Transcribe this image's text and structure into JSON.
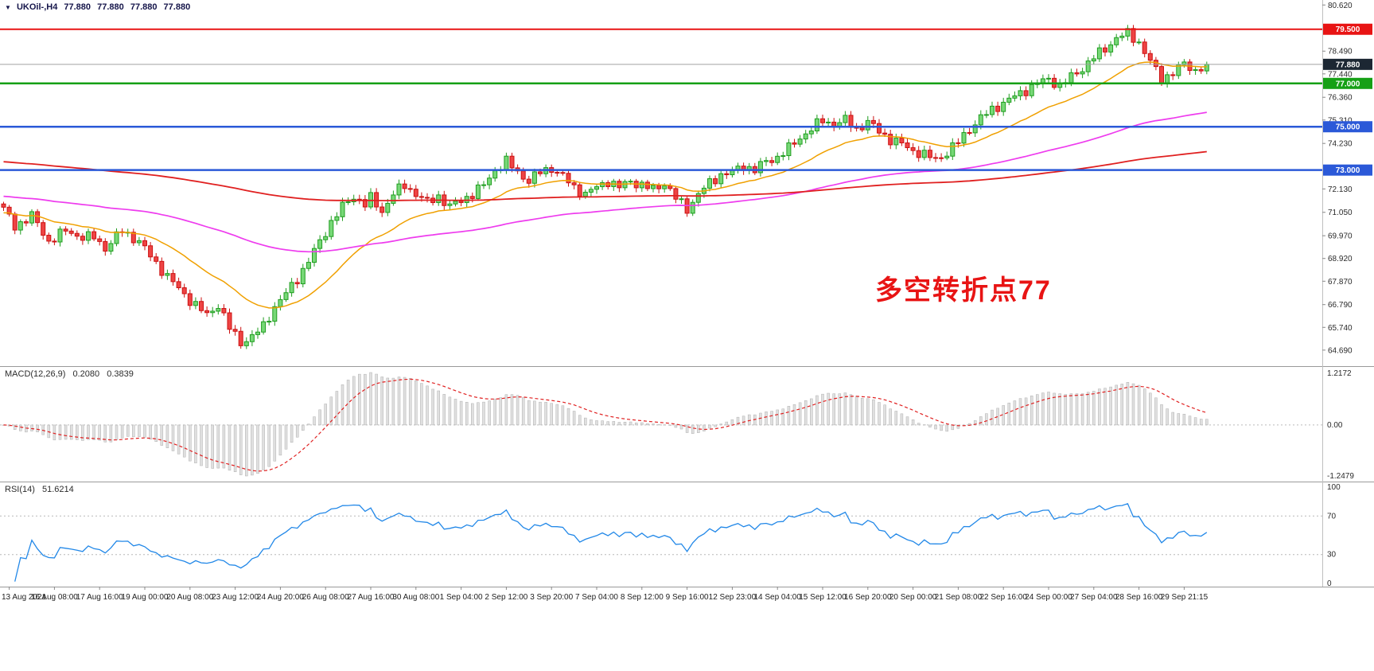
{
  "header": {
    "dropdown_icon": "▼",
    "symbol_timeframe": "UKOil-,H4",
    "open": "77.880",
    "high": "77.880",
    "low": "77.880",
    "close": "77.880"
  },
  "indicators": {
    "macd": {
      "label": "MACD(12,26,9)",
      "main": "0.2080",
      "signal": "0.3839"
    },
    "rsi": {
      "label": "RSI(14)",
      "value": "51.6214"
    }
  },
  "annotation": {
    "text": "多空转折点77",
    "color": "#e81414"
  },
  "chart_data": {
    "type": "candlestick",
    "symbol": "UKOil-",
    "timeframe": "H4",
    "bar_spacing_px": 7.1,
    "first_bar_x": 4.5,
    "price_range": [
      63.95,
      80.85
    ],
    "price_ticks": [
      {
        "v": 80.62,
        "t": "80.620"
      },
      {
        "v": 78.49,
        "t": "78.490"
      },
      {
        "v": 77.44,
        "t": "77.440"
      },
      {
        "v": 76.36,
        "t": "76.360"
      },
      {
        "v": 75.31,
        "t": "75.310"
      },
      {
        "v": 74.23,
        "t": "74.230"
      },
      {
        "v": 72.13,
        "t": "72.130"
      },
      {
        "v": 71.05,
        "t": "71.050"
      },
      {
        "v": 69.97,
        "t": "69.970"
      },
      {
        "v": 68.92,
        "t": "68.920"
      },
      {
        "v": 67.87,
        "t": "67.870"
      },
      {
        "v": 66.79,
        "t": "66.790"
      },
      {
        "v": 65.74,
        "t": "65.740"
      },
      {
        "v": 64.69,
        "t": "64.690"
      }
    ],
    "horizontal_levels": [
      {
        "value": 79.5,
        "label": "79.500",
        "color": "#e81414",
        "width": 2
      },
      {
        "value": 77.0,
        "label": "77.000",
        "color": "#16a016",
        "width": 2.5
      },
      {
        "value": 75.0,
        "label": "75.000",
        "color": "#2b59d8",
        "width": 2.5
      },
      {
        "value": 73.0,
        "label": "73.000",
        "color": "#2b59d8",
        "width": 2.5
      }
    ],
    "current_price": {
      "value": 77.88,
      "label": "77.880",
      "line_color": "#a0a0a0",
      "badge_color": "#1c2733"
    },
    "candle_colors": {
      "up_fill": "#77d877",
      "up_stroke": "#1f9d1f",
      "down_fill": "#ee4444",
      "down_stroke": "#cc1111"
    },
    "close_anchors": [
      [
        0,
        71.2
      ],
      [
        2,
        70.4
      ],
      [
        5,
        70.9
      ],
      [
        8,
        69.7
      ],
      [
        11,
        70.2
      ],
      [
        14,
        69.9
      ],
      [
        16,
        69.9
      ],
      [
        18,
        69.4
      ],
      [
        21,
        70.2
      ],
      [
        24,
        69.7
      ],
      [
        27,
        68.7
      ],
      [
        30,
        67.8
      ],
      [
        33,
        67.0
      ],
      [
        36,
        66.3
      ],
      [
        38,
        66.8
      ],
      [
        40,
        65.7
      ],
      [
        42,
        65.05
      ],
      [
        44,
        65.3
      ],
      [
        46,
        65.8
      ],
      [
        48,
        66.7
      ],
      [
        50,
        67.3
      ],
      [
        52,
        68.0
      ],
      [
        54,
        68.8
      ],
      [
        56,
        69.7
      ],
      [
        58,
        70.6
      ],
      [
        60,
        71.3
      ],
      [
        62,
        71.8
      ],
      [
        64,
        71.4
      ],
      [
        65,
        71.7
      ],
      [
        67,
        71.1
      ],
      [
        69,
        71.9
      ],
      [
        71,
        72.3
      ],
      [
        73,
        71.9
      ],
      [
        75,
        71.5
      ],
      [
        77,
        71.8
      ],
      [
        79,
        71.3
      ],
      [
        81,
        71.6
      ],
      [
        83,
        71.9
      ],
      [
        85,
        72.3
      ],
      [
        87,
        73.0
      ],
      [
        89,
        73.4
      ],
      [
        91,
        72.9
      ],
      [
        93,
        72.5
      ],
      [
        95,
        72.9
      ],
      [
        97,
        73.1
      ],
      [
        99,
        72.7
      ],
      [
        101,
        72.2
      ],
      [
        103,
        71.9
      ],
      [
        105,
        72.2
      ],
      [
        107,
        72.5
      ],
      [
        109,
        72.2
      ],
      [
        111,
        72.5
      ],
      [
        113,
        72.3
      ],
      [
        115,
        72.1
      ],
      [
        117,
        72.4
      ],
      [
        119,
        71.7
      ],
      [
        121,
        71.2
      ],
      [
        123,
        71.9
      ],
      [
        125,
        72.4
      ],
      [
        127,
        72.8
      ],
      [
        129,
        72.9
      ],
      [
        131,
        73.2
      ],
      [
        133,
        73.0
      ],
      [
        135,
        73.4
      ],
      [
        137,
        73.6
      ],
      [
        139,
        74.0
      ],
      [
        141,
        74.5
      ],
      [
        143,
        74.9
      ],
      [
        145,
        75.3
      ],
      [
        147,
        75.1
      ],
      [
        149,
        75.3
      ],
      [
        151,
        74.9
      ],
      [
        153,
        75.2
      ],
      [
        155,
        74.8
      ],
      [
        157,
        74.4
      ],
      [
        159,
        74.2
      ],
      [
        161,
        73.9
      ],
      [
        163,
        73.7
      ],
      [
        165,
        73.5
      ],
      [
        167,
        73.8
      ],
      [
        169,
        74.3
      ],
      [
        171,
        74.9
      ],
      [
        173,
        75.4
      ],
      [
        175,
        75.8
      ],
      [
        177,
        76.1
      ],
      [
        179,
        76.4
      ],
      [
        181,
        76.7
      ],
      [
        183,
        77.0
      ],
      [
        185,
        77.2
      ],
      [
        187,
        76.9
      ],
      [
        189,
        77.3
      ],
      [
        191,
        77.7
      ],
      [
        193,
        78.2
      ],
      [
        195,
        78.6
      ],
      [
        197,
        79.1
      ],
      [
        199,
        79.3
      ],
      [
        201,
        78.9
      ],
      [
        203,
        78.0
      ],
      [
        205,
        77.2
      ],
      [
        207,
        77.5
      ],
      [
        209,
        77.9
      ],
      [
        211,
        77.6
      ],
      [
        213,
        77.88
      ]
    ],
    "wiggle": {
      "a1": 0.16,
      "f1": 2.63,
      "a2": 0.11,
      "f2": 1.27,
      "p2": 0.9
    },
    "moving_averages": [
      {
        "name": "ma-fast-orange",
        "color": "#f0a000",
        "alpha": 0.09,
        "seed": 71.0,
        "width": 1.5
      },
      {
        "name": "ma-mid-magenta",
        "color": "#ee3cee",
        "alpha": 0.02,
        "seed": 71.8,
        "width": 1.7
      },
      {
        "name": "ma-slow-red",
        "color": "#e02020",
        "alpha": 0.0075,
        "seed": 73.4,
        "width": 1.8
      }
    ],
    "macd": {
      "fast": 12,
      "slow": 26,
      "signal": 9,
      "hist_fill": "#e0e0e0",
      "hist_stroke": "#b0b0b0",
      "signal_color": "#e02020",
      "axis_labels": {
        "max": "1.2172",
        "zero": "0.00",
        "min": "-1.2479"
      }
    },
    "rsi": {
      "period": 14,
      "color": "#2288e8",
      "levels": [
        70,
        30
      ],
      "axis_labels": [
        {
          "v": 100,
          "t": "100"
        },
        {
          "v": 70,
          "t": "70"
        },
        {
          "v": 30,
          "t": "30"
        },
        {
          "v": 0,
          "t": "0"
        }
      ]
    },
    "time_labels": [
      "13 Aug 2021",
      "16 Aug 08:00",
      "17 Aug 16:00",
      "19 Aug 00:00",
      "20 Aug 08:00",
      "23 Aug 12:00",
      "24 Aug 20:00",
      "26 Aug 08:00",
      "27 Aug 16:00",
      "30 Aug 08:00",
      "1 Sep 04:00",
      "2 Sep 12:00",
      "3 Sep 20:00",
      "7 Sep 04:00",
      "8 Sep 12:00",
      "9 Sep 16:00",
      "12 Sep 23:00",
      "14 Sep 04:00",
      "15 Sep 12:00",
      "16 Sep 20:00",
      "20 Sep 00:00",
      "21 Sep 08:00",
      "22 Sep 16:00",
      "24 Sep 00:00",
      "27 Sep 04:00",
      "28 Sep 16:00",
      "29 Sep 21:15"
    ],
    "bars_per_label": 8,
    "first_label_bar": 1
  }
}
